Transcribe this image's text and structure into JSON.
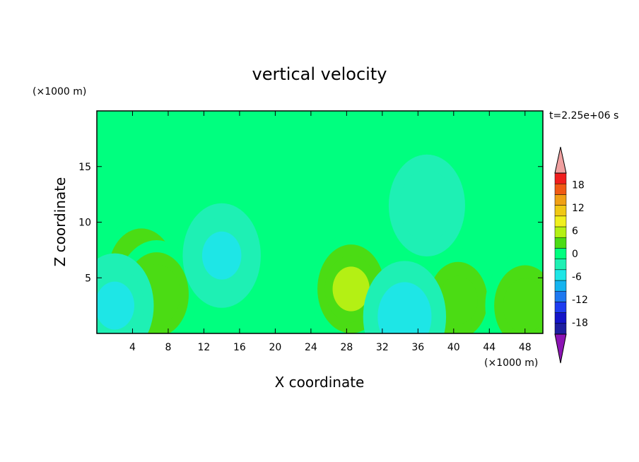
{
  "chart_data": {
    "type": "heatmap",
    "title": "vertical velocity",
    "xlabel": "X coordinate",
    "ylabel": "Z coordinate",
    "x_unit": "(×1000 m)",
    "y_unit": "(×1000 m)",
    "time_label": "t=2.25e+06 s",
    "xlim": [
      0,
      50
    ],
    "ylim": [
      0,
      20
    ],
    "x_ticks": [
      4,
      8,
      12,
      16,
      20,
      24,
      28,
      32,
      36,
      40,
      44,
      48
    ],
    "y_ticks": [
      5,
      10,
      15
    ],
    "colorbar": {
      "levels": [
        -21,
        -18,
        -15,
        -12,
        -9,
        -6,
        -3,
        0,
        3,
        6,
        9,
        12,
        15,
        18,
        21
      ],
      "labels": [
        18,
        12,
        6,
        0,
        -6,
        -12,
        -18
      ],
      "colors": [
        "#1e1ea0",
        "#1414c8",
        "#1e3cf0",
        "#1e78f0",
        "#14b4f0",
        "#1ee6e6",
        "#1ef0b4",
        "#00ff7f",
        "#4bdc14",
        "#b4f014",
        "#f0f01e",
        "#f0c814",
        "#f0a014",
        "#f05a14",
        "#f01e1e"
      ],
      "under_color": "#8c14b4",
      "over_color": "#f0a0a0"
    },
    "features": [
      {
        "x": 5,
        "z": 5.5,
        "w": 6.0
      },
      {
        "x": 6.7,
        "z": 3.5,
        "w": 5.5
      },
      {
        "x": 28.5,
        "z": 4,
        "w": 6.2
      },
      {
        "x": 40.5,
        "z": 3,
        "w": 4.5
      },
      {
        "x": 48,
        "z": 2.5,
        "w": 5.0
      },
      {
        "x": 2,
        "z": 2.5,
        "w": -4.5
      },
      {
        "x": 34.5,
        "z": 1.5,
        "w": -6.5
      },
      {
        "x": 14,
        "z": 7,
        "w": -4.5
      },
      {
        "x": 37,
        "z": 11.5,
        "w": -4.0
      }
    ]
  }
}
